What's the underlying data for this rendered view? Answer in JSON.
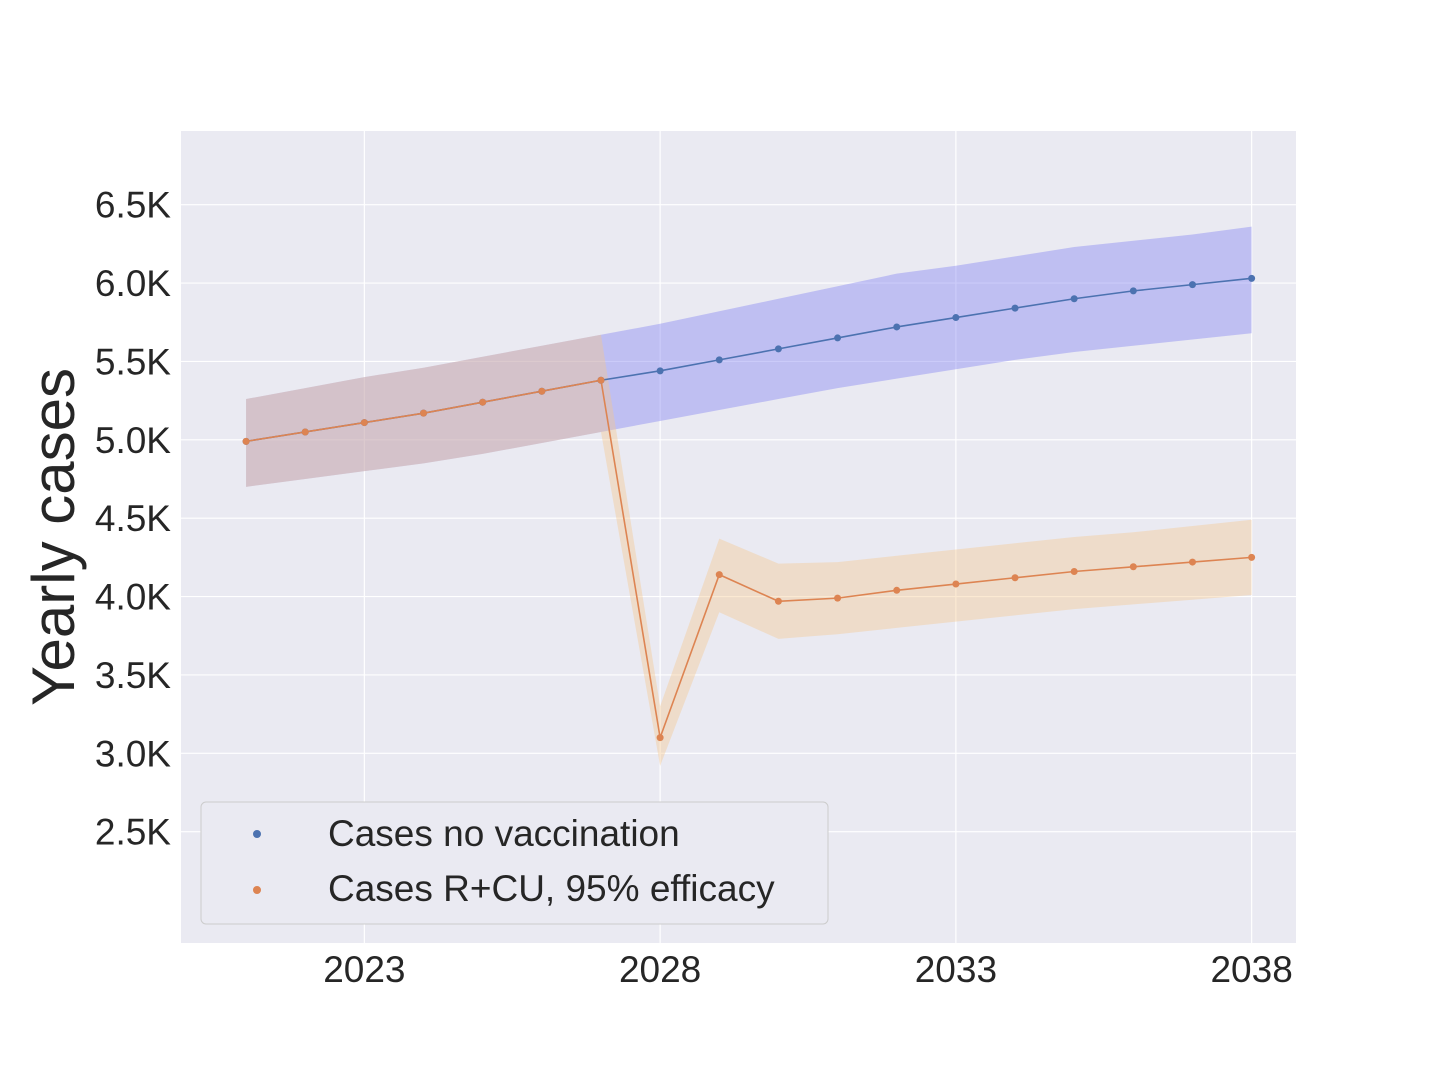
{
  "chart_data": {
    "type": "line",
    "ylabel": "Yearly cases",
    "xlabel": "",
    "x": [
      2021,
      2022,
      2023,
      2024,
      2025,
      2026,
      2027,
      2028,
      2029,
      2030,
      2031,
      2032,
      2033,
      2034,
      2035,
      2036,
      2037,
      2038
    ],
    "xlim": [
      2019.9,
      2038.75
    ],
    "ylim": [
      1790,
      6970
    ],
    "x_ticks": [
      2023,
      2028,
      2033,
      2038
    ],
    "x_tick_labels": [
      "2023",
      "2028",
      "2033",
      "2038"
    ],
    "y_ticks": [
      2500,
      3000,
      3500,
      4000,
      4500,
      5000,
      5500,
      6000,
      6500
    ],
    "y_tick_labels": [
      "2.5K",
      "3.0K",
      "3.5K",
      "4.0K",
      "4.5K",
      "5.0K",
      "5.5K",
      "6.0K",
      "6.5K"
    ],
    "grid": true,
    "legend_position": "lower-left",
    "colors": {
      "background": "#eaeaf2",
      "grid": "#ffffff",
      "text": "#262626"
    },
    "series": [
      {
        "name": "Cases no vaccination",
        "color": "#4c72b0",
        "band_color": "#8c8cf2",
        "x": [
          2021,
          2022,
          2023,
          2024,
          2025,
          2026,
          2027,
          2028,
          2029,
          2030,
          2031,
          2032,
          2033,
          2034,
          2035,
          2036,
          2037,
          2038
        ],
        "values": [
          4990,
          5050,
          5110,
          5170,
          5240,
          5310,
          5380,
          5440,
          5510,
          5580,
          5650,
          5720,
          5780,
          5840,
          5900,
          5950,
          5990,
          6030
        ],
        "lower": [
          4700,
          4750,
          4800,
          4850,
          4910,
          4980,
          5050,
          5120,
          5190,
          5260,
          5330,
          5390,
          5450,
          5510,
          5560,
          5600,
          5640,
          5680
        ],
        "upper": [
          5260,
          5330,
          5400,
          5460,
          5530,
          5600,
          5670,
          5740,
          5820,
          5900,
          5980,
          6060,
          6110,
          6170,
          6230,
          6270,
          6310,
          6360
        ]
      },
      {
        "name": "Cases R+CU, 95% efficacy",
        "color": "#dd8452",
        "band_color": "#f4c78f",
        "x": [
          2021,
          2022,
          2023,
          2024,
          2025,
          2026,
          2027,
          2028,
          2029,
          2030,
          2031,
          2032,
          2033,
          2034,
          2035,
          2036,
          2037,
          2038
        ],
        "values": [
          4990,
          5050,
          5110,
          5170,
          5240,
          5310,
          5380,
          3100,
          4140,
          3970,
          3990,
          4040,
          4080,
          4120,
          4160,
          4190,
          4220,
          4250
        ],
        "lower": [
          4700,
          4750,
          4800,
          4850,
          4910,
          4980,
          5050,
          2920,
          3900,
          3730,
          3760,
          3800,
          3840,
          3880,
          3920,
          3950,
          3980,
          4010
        ],
        "upper": [
          5260,
          5330,
          5400,
          5460,
          5530,
          5600,
          5670,
          3300,
          4370,
          4210,
          4220,
          4260,
          4300,
          4340,
          4380,
          4410,
          4450,
          4490
        ]
      }
    ]
  }
}
